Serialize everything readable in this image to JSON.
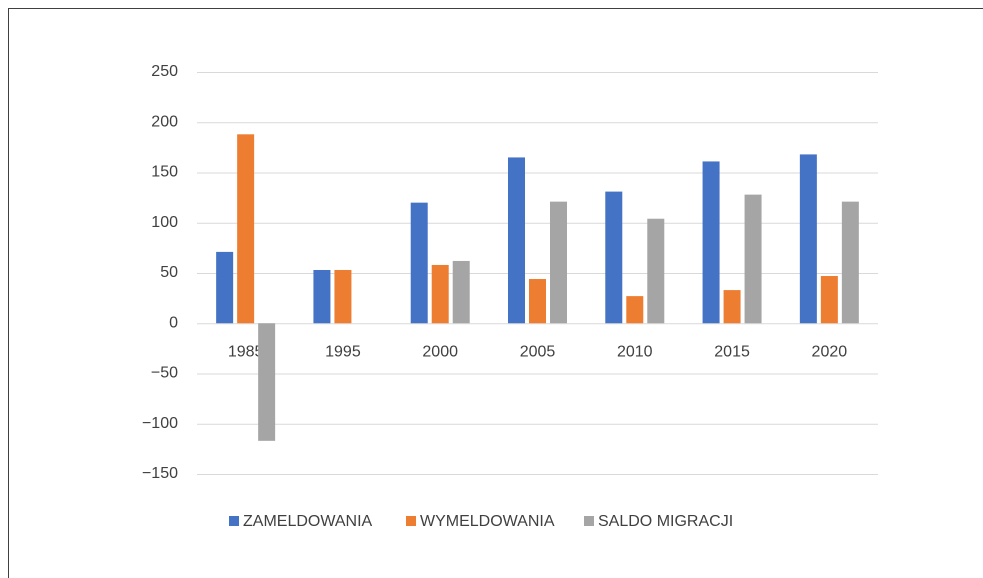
{
  "chart_data": {
    "type": "bar",
    "categories": [
      "1985",
      "1995",
      "2000",
      "2005",
      "2010",
      "2015",
      "2020"
    ],
    "series": [
      {
        "name": "ZAMELDOWANIA",
        "color": "#4472c4",
        "values": [
          71,
          53,
          120,
          165,
          131,
          161,
          168
        ]
      },
      {
        "name": "WYMELDOWANIA",
        "color": "#ed7d31",
        "values": [
          188,
          53,
          58,
          44,
          27,
          33,
          47
        ]
      },
      {
        "name": "SALDO MIGRACJI",
        "color": "#a5a5a5",
        "values": [
          -117,
          0,
          62,
          121,
          104,
          128,
          121
        ]
      }
    ],
    "ylim": [
      -150,
      250
    ],
    "yticks": [
      {
        "value": -150,
        "label": "−150"
      },
      {
        "value": -100,
        "label": "−100"
      },
      {
        "value": -50,
        "label": "−50"
      },
      0,
      50,
      100,
      150,
      200,
      250
    ],
    "grid": true,
    "legend": "bottom"
  }
}
